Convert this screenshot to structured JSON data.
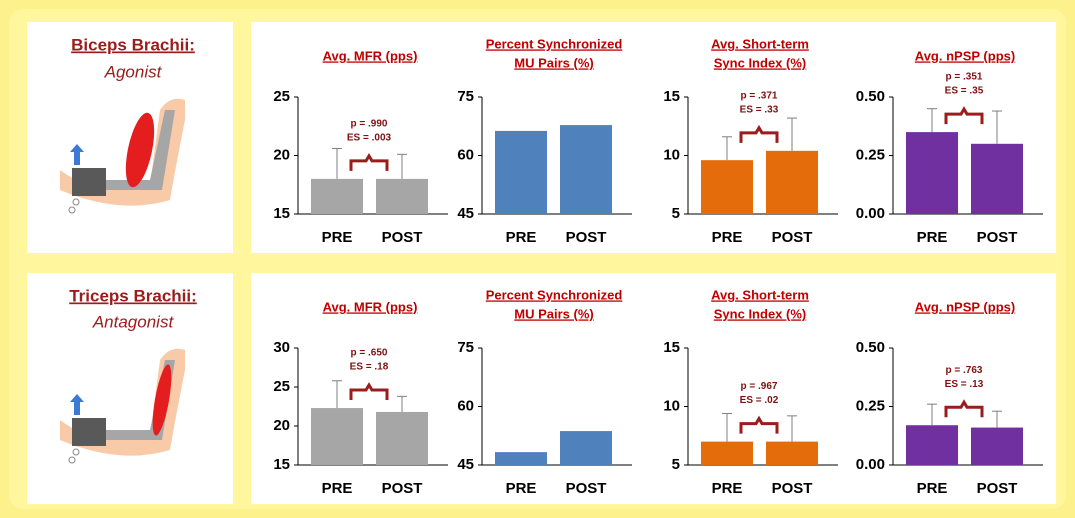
{
  "panels": [
    {
      "muscle": "Biceps Brachii:",
      "role": "Agonist"
    },
    {
      "muscle": "Triceps Brachii:",
      "role": "Antagonist"
    }
  ],
  "chart_data": [
    {
      "type": "bar",
      "title": [
        "Avg. MFR (pps)"
      ],
      "categories": [
        "PRE",
        "POST"
      ],
      "values": [
        18.0,
        18.0
      ],
      "errors": [
        2.6,
        2.1
      ],
      "color": "#a6a6a6",
      "ylim": [
        15,
        25
      ],
      "yticks": [
        15,
        20,
        25
      ],
      "annotation": [
        "p = .990",
        "ES = .003"
      ]
    },
    {
      "type": "bar",
      "title": [
        "Percent Synchronized",
        "MU Pairs (%)"
      ],
      "categories": [
        "PRE",
        "POST"
      ],
      "values": [
        66.3,
        67.8
      ],
      "color": "#4f81bd",
      "ylim": [
        45,
        75
      ],
      "yticks": [
        45,
        60,
        75
      ]
    },
    {
      "type": "bar",
      "title": [
        "Avg. Short-term",
        "Sync Index (%)"
      ],
      "categories": [
        "PRE",
        "POST"
      ],
      "values": [
        9.6,
        10.4
      ],
      "errors": [
        2.0,
        2.8
      ],
      "color": "#e46c0a",
      "ylim": [
        5,
        15
      ],
      "yticks": [
        5,
        10,
        15
      ],
      "annotation": [
        "p = .371",
        "ES = .33"
      ]
    },
    {
      "type": "bar",
      "title": [
        "Avg. nPSP (pps)"
      ],
      "categories": [
        "PRE",
        "POST"
      ],
      "values": [
        0.35,
        0.3
      ],
      "errors": [
        0.1,
        0.14
      ],
      "color": "#7030a0",
      "ylim": [
        0,
        0.5
      ],
      "yticks": [
        {
          "value": 0,
          "label": "0.00"
        },
        {
          "value": 0.25,
          "label": "0.25"
        },
        {
          "value": 0.5,
          "label": "0.50"
        }
      ],
      "annotation": [
        "p = .351",
        "ES = .35"
      ]
    },
    {
      "type": "bar",
      "title": [
        "Avg. MFR (pps)"
      ],
      "categories": [
        "PRE",
        "POST"
      ],
      "values": [
        22.3,
        21.8
      ],
      "errors": [
        3.5,
        2.0
      ],
      "color": "#a6a6a6",
      "ylim": [
        15,
        30
      ],
      "yticks": [
        15,
        20,
        25,
        30
      ],
      "annotation": [
        "p = .650",
        "ES = .18"
      ]
    },
    {
      "type": "bar",
      "title": [
        "Percent Synchronized",
        "MU Pairs (%)"
      ],
      "categories": [
        "PRE",
        "POST"
      ],
      "values": [
        48.3,
        53.7
      ],
      "color": "#4f81bd",
      "ylim": [
        45,
        75
      ],
      "yticks": [
        45,
        60,
        75
      ]
    },
    {
      "type": "bar",
      "title": [
        "Avg. Short-term",
        "Sync Index (%)"
      ],
      "categories": [
        "PRE",
        "POST"
      ],
      "values": [
        7.0,
        7.0
      ],
      "errors": [
        2.4,
        2.2
      ],
      "color": "#e46c0a",
      "ylim": [
        5,
        15
      ],
      "yticks": [
        5,
        10,
        15
      ],
      "annotation": [
        "p = .967",
        "ES = .02"
      ]
    },
    {
      "type": "bar",
      "title": [
        "Avg. nPSP (pps)"
      ],
      "categories": [
        "PRE",
        "POST"
      ],
      "values": [
        0.17,
        0.16
      ],
      "errors": [
        0.09,
        0.07
      ],
      "color": "#7030a0",
      "ylim": [
        0,
        0.5
      ],
      "yticks": [
        {
          "value": 0,
          "label": "0.00"
        },
        {
          "value": 0.25,
          "label": "0.25"
        },
        {
          "value": 0.5,
          "label": "0.50"
        }
      ],
      "annotation": [
        "p = .763",
        "ES = .13"
      ]
    }
  ]
}
